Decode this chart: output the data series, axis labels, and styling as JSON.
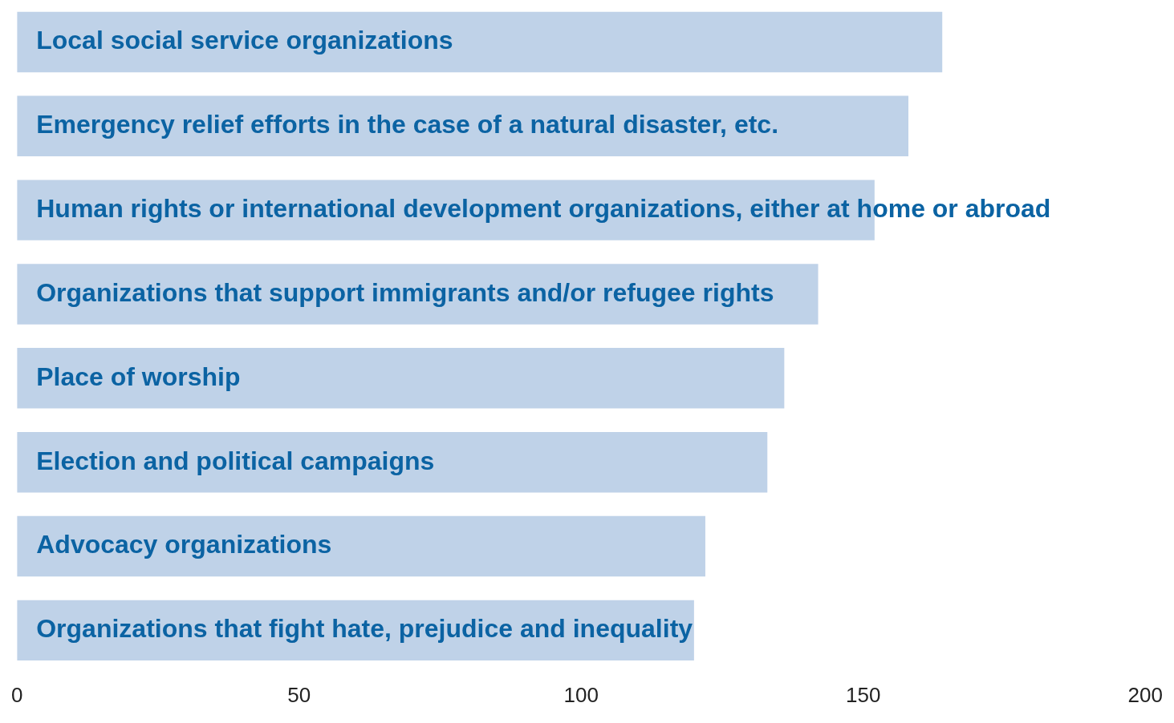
{
  "chart_data": {
    "type": "bar",
    "orientation": "horizontal",
    "categories": [
      "Local social service organizations",
      "Emergency relief efforts in the case of a natural disaster, etc.",
      "Human rights or international development organizations, either at home or abroad",
      "Organizations that support immigrants and/or refugee rights",
      "Place of worship",
      "Election and political campaigns",
      "Advocacy organizations",
      "Organizations that fight hate, prejudice and inequality"
    ],
    "values": [
      164,
      158,
      152,
      142,
      136,
      133,
      122,
      120
    ],
    "color": "#bfd2e8",
    "xlim": [
      0,
      200
    ],
    "xticks": [
      0,
      50,
      100,
      150,
      200
    ],
    "grid": false,
    "legend": false
  }
}
